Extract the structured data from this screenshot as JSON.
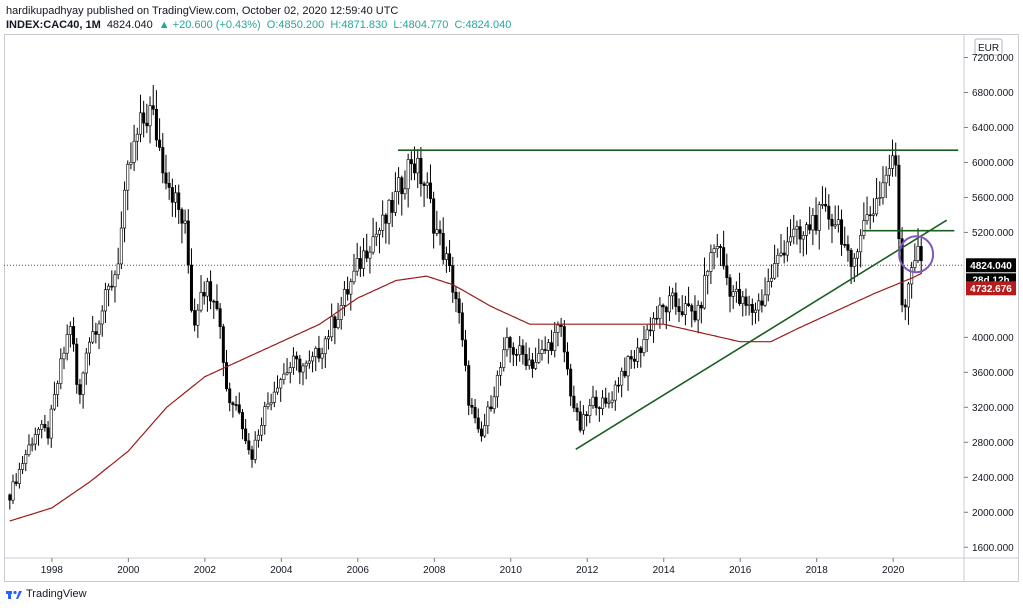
{
  "header": {
    "published_line": "hardikupadhyay published on TradingView.com, October 02, 2020 12:59:40 UTC",
    "symbol": "INDEX:CAC40, 1M",
    "last": "4824.040",
    "change": "+20.600 (+0.43%)",
    "open": "O:4850.200",
    "high": "H:4871.830",
    "low": "L:4804.770",
    "close": "C:4824.040"
  },
  "footer": {
    "brand": "TradingView"
  },
  "colors": {
    "up": "#26a69a",
    "candle": "#000000",
    "ma": "#9b1b1b",
    "trendline": "#1b5e20",
    "circle": "#7e57c2",
    "price_badge": "#000000",
    "ma_badge": "#b71c1c"
  },
  "chart_data": {
    "type": "candlestick",
    "currency": "EUR",
    "x_ticks": [
      "1998",
      "2000",
      "2002",
      "2004",
      "2006",
      "2008",
      "2010",
      "2012",
      "2014",
      "2016",
      "2018",
      "2020"
    ],
    "y_ticks": [
      "7200.000",
      "6800.000",
      "6400.000",
      "6000.000",
      "5600.000",
      "5200.000",
      "4824.040",
      "4000.000",
      "3600.000",
      "3200.000",
      "2800.000",
      "2400.000",
      "2000.000",
      "1600.000"
    ],
    "ylim": [
      1500,
      7400
    ],
    "xlim": [
      1996.8,
      2021.8
    ],
    "last_price": 4824.04,
    "last_price_label": "4824.040",
    "countdown_label": "28d 12h",
    "ma_value": 4732.676,
    "ma_label": "4732.676",
    "close_series": [
      [
        1996.9,
        2200
      ],
      [
        1997.3,
        2650
      ],
      [
        1997.6,
        2950
      ],
      [
        1997.9,
        2900
      ],
      [
        1998.2,
        3600
      ],
      [
        1998.5,
        4200
      ],
      [
        1998.7,
        3200
      ],
      [
        1998.9,
        3900
      ],
      [
        1999.3,
        4300
      ],
      [
        1999.7,
        4800
      ],
      [
        2000.0,
        5900
      ],
      [
        2000.3,
        6400
      ],
      [
        2000.6,
        6600
      ],
      [
        2000.9,
        6000
      ],
      [
        2001.2,
        5600
      ],
      [
        2001.5,
        5200
      ],
      [
        2001.7,
        4100
      ],
      [
        2001.9,
        4600
      ],
      [
        2002.3,
        4500
      ],
      [
        2002.6,
        3300
      ],
      [
        2002.9,
        3200
      ],
      [
        2003.2,
        2600
      ],
      [
        2003.5,
        3100
      ],
      [
        2003.9,
        3500
      ],
      [
        2004.3,
        3700
      ],
      [
        2004.7,
        3650
      ],
      [
        2005.0,
        3850
      ],
      [
        2005.5,
        4300
      ],
      [
        2005.9,
        4700
      ],
      [
        2006.3,
        5100
      ],
      [
        2006.7,
        5300
      ],
      [
        2007.0,
        5600
      ],
      [
        2007.4,
        6050
      ],
      [
        2007.8,
        5700
      ],
      [
        2008.0,
        5300
      ],
      [
        2008.3,
        4900
      ],
      [
        2008.6,
        4400
      ],
      [
        2008.9,
        3300
      ],
      [
        2009.2,
        2800
      ],
      [
        2009.5,
        3300
      ],
      [
        2009.9,
        3900
      ],
      [
        2010.3,
        3800
      ],
      [
        2010.6,
        3700
      ],
      [
        2010.9,
        3850
      ],
      [
        2011.3,
        4100
      ],
      [
        2011.6,
        3300
      ],
      [
        2011.8,
        2950
      ],
      [
        2012.2,
        3300
      ],
      [
        2012.5,
        3200
      ],
      [
        2012.9,
        3600
      ],
      [
        2013.3,
        3800
      ],
      [
        2013.7,
        4200
      ],
      [
        2014.2,
        4400
      ],
      [
        2014.6,
        4300
      ],
      [
        2014.9,
        4250
      ],
      [
        2015.2,
        4900
      ],
      [
        2015.4,
        5100
      ],
      [
        2015.7,
        4600
      ],
      [
        2016.0,
        4400
      ],
      [
        2016.3,
        4300
      ],
      [
        2016.6,
        4450
      ],
      [
        2016.9,
        4800
      ],
      [
        2017.3,
        5200
      ],
      [
        2017.6,
        5100
      ],
      [
        2017.9,
        5350
      ],
      [
        2018.3,
        5400
      ],
      [
        2018.6,
        5300
      ],
      [
        2018.9,
        4700
      ],
      [
        2019.1,
        5200
      ],
      [
        2019.5,
        5500
      ],
      [
        2019.9,
        5950
      ],
      [
        2020.1,
        6000
      ],
      [
        2020.2,
        4400
      ],
      [
        2020.3,
        4400
      ],
      [
        2020.5,
        4900
      ],
      [
        2020.7,
        4950
      ],
      [
        2020.75,
        4824
      ]
    ],
    "ma_series": [
      [
        1996.9,
        1900
      ],
      [
        1998.0,
        2050
      ],
      [
        1999.0,
        2350
      ],
      [
        2000.0,
        2700
      ],
      [
        2001.0,
        3200
      ],
      [
        2002.0,
        3550
      ],
      [
        2003.0,
        3750
      ],
      [
        2004.0,
        3950
      ],
      [
        2005.0,
        4150
      ],
      [
        2006.0,
        4450
      ],
      [
        2007.0,
        4650
      ],
      [
        2007.8,
        4700
      ],
      [
        2008.5,
        4600
      ],
      [
        2009.5,
        4350
      ],
      [
        2010.5,
        4150
      ],
      [
        2011.2,
        4150
      ],
      [
        2012.0,
        4150
      ],
      [
        2013.0,
        4150
      ],
      [
        2014.0,
        4150
      ],
      [
        2015.0,
        4050
      ],
      [
        2016.0,
        3950
      ],
      [
        2016.8,
        3950
      ],
      [
        2017.5,
        4100
      ],
      [
        2018.5,
        4300
      ],
      [
        2019.5,
        4500
      ],
      [
        2020.5,
        4680
      ],
      [
        2020.75,
        4733
      ]
    ],
    "annotations": {
      "resistance": {
        "x1": 2007.05,
        "x2": 2021.7,
        "y": 6140
      },
      "support_trend": {
        "x1": 2011.7,
        "y1": 2720,
        "x2": 2021.4,
        "y2": 5340
      },
      "short_level": {
        "x1": 2019.2,
        "x2": 2021.6,
        "y": 5220
      },
      "circle": {
        "x": 2020.6,
        "y": 4950
      }
    }
  }
}
